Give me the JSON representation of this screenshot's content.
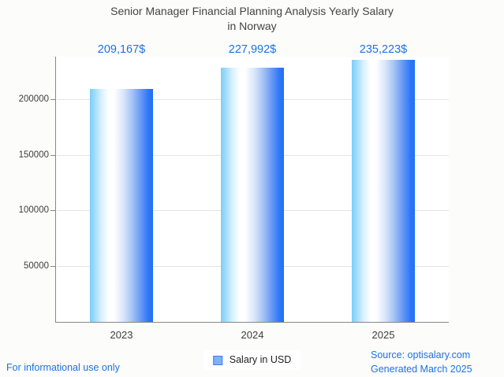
{
  "title": {
    "line1": "Senior Manager Financial Planning Analysis Yearly Salary",
    "line2": "in Norway"
  },
  "chart_data": {
    "type": "bar",
    "title": "Senior Manager Financial Planning Analysis Yearly Salary in Norway",
    "categories": [
      "2023",
      "2024",
      "2025"
    ],
    "values": [
      209167,
      227992,
      235223
    ],
    "value_labels": [
      "209,167$",
      "227,992$",
      "235,223$"
    ],
    "series": [
      {
        "name": "Salary in USD",
        "values": [
          209167,
          227992,
          235223
        ]
      }
    ],
    "xlabel": "",
    "ylabel": "",
    "yticks": [
      50000,
      100000,
      150000,
      200000
    ],
    "ytick_labels": [
      "50000",
      "100000",
      "150000",
      "200000"
    ],
    "ylim": [
      0,
      238000
    ],
    "grid": true,
    "legend_position": "bottom-center",
    "bar_gradient": [
      "#79cef9",
      "#ffffff",
      "#2270f6"
    ]
  },
  "legend": {
    "label": "Salary in USD",
    "marker_fill": "#7fb0f3",
    "marker_border": "#3b82f6"
  },
  "footer": {
    "disclaimer": "For informational use only",
    "source": "Source: optisalary.com",
    "generated": "Generated March 2025"
  },
  "colors": {
    "accent_blue": "#1a73e8",
    "title_gray": "#434343",
    "axis_gray": "#878787",
    "grid_gray": "#e4e4e4",
    "plot_bg": "#ffffff",
    "figure_bg": "#fcfcfa"
  }
}
